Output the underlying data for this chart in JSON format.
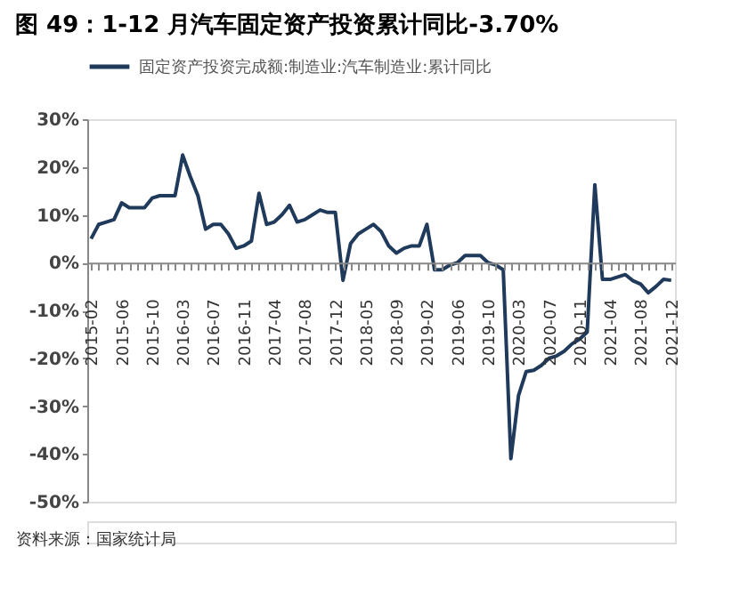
{
  "chart_data": {
    "type": "line",
    "title": "图 49：1-12 月汽车固定资产投资累计同比-3.70%",
    "categories": [
      "2015-02",
      null,
      null,
      null,
      "2015-06",
      null,
      null,
      null,
      "2015-10",
      null,
      null,
      null,
      "2016-03",
      null,
      null,
      null,
      "2016-07",
      null,
      null,
      null,
      "2016-11",
      null,
      null,
      null,
      "2017-04",
      null,
      null,
      null,
      "2017-08",
      null,
      null,
      null,
      "2017-12",
      null,
      null,
      null,
      "2018-05",
      null,
      null,
      null,
      "2018-09",
      null,
      null,
      null,
      "2019-02",
      null,
      null,
      null,
      "2019-06",
      null,
      null,
      null,
      "2019-10",
      null,
      null,
      null,
      "2020-03",
      null,
      null,
      null,
      "2020-07",
      null,
      null,
      null,
      "2020-11",
      null,
      null,
      null,
      "2021-04",
      null,
      null,
      null,
      "2021-08",
      null,
      null,
      null,
      "2021-12"
    ],
    "series": [
      {
        "name": "固定资产投资完成额:制造业:汽车制造业:累计同比",
        "color": "#1f3a5a",
        "values": [
          5,
          8,
          8.5,
          9,
          12.5,
          11.5,
          11.5,
          11.5,
          13.5,
          14,
          14,
          14,
          22.5,
          18,
          14,
          7,
          8,
          8,
          6,
          3,
          3.5,
          4.5,
          14.5,
          8,
          8.5,
          10,
          12,
          8.5,
          9,
          10,
          11,
          10.5,
          10.5,
          -3.7,
          4,
          6,
          7,
          8,
          6.5,
          3.5,
          2,
          3,
          3.5,
          3.5,
          8,
          -1.5,
          -1.5,
          -0.5,
          0,
          1.5,
          1.5,
          1.5,
          0,
          -0.5,
          -1.5,
          -41,
          -27.8,
          -22.8,
          -22.5,
          -21.5,
          -20,
          -19.5,
          -18.5,
          -17,
          -16,
          -14.5,
          16.3,
          -3.5,
          -3.5,
          -3,
          -2.5,
          -3.8,
          -4.5,
          -6.3,
          -5,
          -3.5,
          -3.7
        ]
      }
    ],
    "ylim": [
      -50,
      30
    ],
    "yticks": [
      {
        "value": 30,
        "label": "30%"
      },
      {
        "value": 20,
        "label": "20%"
      },
      {
        "value": 10,
        "label": "10%"
      },
      {
        "value": 0,
        "label": "0%"
      },
      {
        "value": -10,
        "label": "-10%"
      },
      {
        "value": -20,
        "label": "-20%"
      },
      {
        "value": -30,
        "label": "-30%"
      },
      {
        "value": -40,
        "label": "-40%"
      },
      {
        "value": -50,
        "label": "-50%"
      }
    ],
    "grid": false,
    "legend": "top",
    "marker": "none",
    "line_style": "solid",
    "annotations": [
      "资料来源：国家统计局"
    ]
  }
}
